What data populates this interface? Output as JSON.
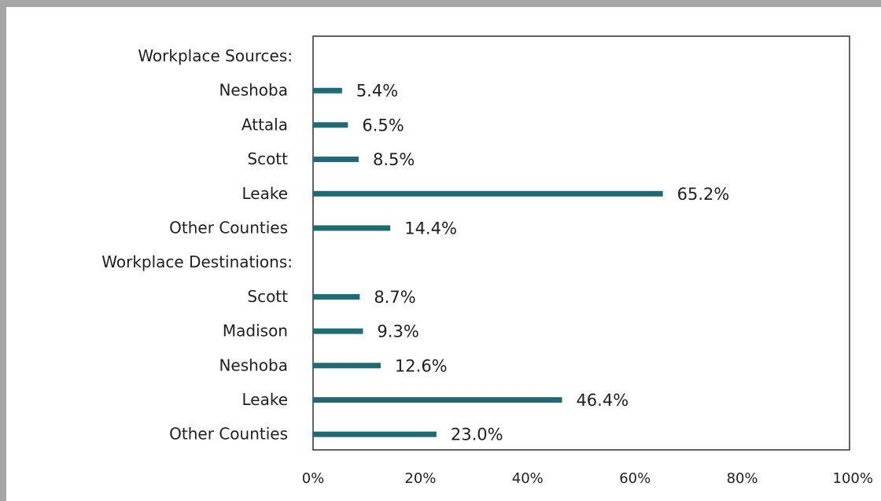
{
  "chart_data": {
    "type": "bar",
    "orientation": "horizontal",
    "xlim": [
      0,
      100
    ],
    "x_ticks": [
      "0%",
      "20%",
      "40%",
      "60%",
      "80%",
      "100%"
    ],
    "grid": false,
    "legend": "none",
    "bar_color": "#1f6b73",
    "rows": [
      {
        "label": "Workplace Sources:",
        "section": true
      },
      {
        "label": "Neshoba",
        "value": 5.4,
        "value_label": "5.4%"
      },
      {
        "label": "Attala",
        "value": 6.5,
        "value_label": "6.5%"
      },
      {
        "label": "Scott",
        "value": 8.5,
        "value_label": "8.5%"
      },
      {
        "label": "Leake",
        "value": 65.2,
        "value_label": "65.2%"
      },
      {
        "label": "Other Counties",
        "value": 14.4,
        "value_label": "14.4%"
      },
      {
        "label": "Workplace Destinations:",
        "section": true
      },
      {
        "label": "Scott",
        "value": 8.7,
        "value_label": "8.7%"
      },
      {
        "label": "Madison",
        "value": 9.3,
        "value_label": "9.3%"
      },
      {
        "label": "Neshoba",
        "value": 12.6,
        "value_label": "12.6%"
      },
      {
        "label": "Leake",
        "value": 46.4,
        "value_label": "46.4%"
      },
      {
        "label": "Other Counties",
        "value": 23.0,
        "value_label": "23.0%"
      }
    ]
  }
}
